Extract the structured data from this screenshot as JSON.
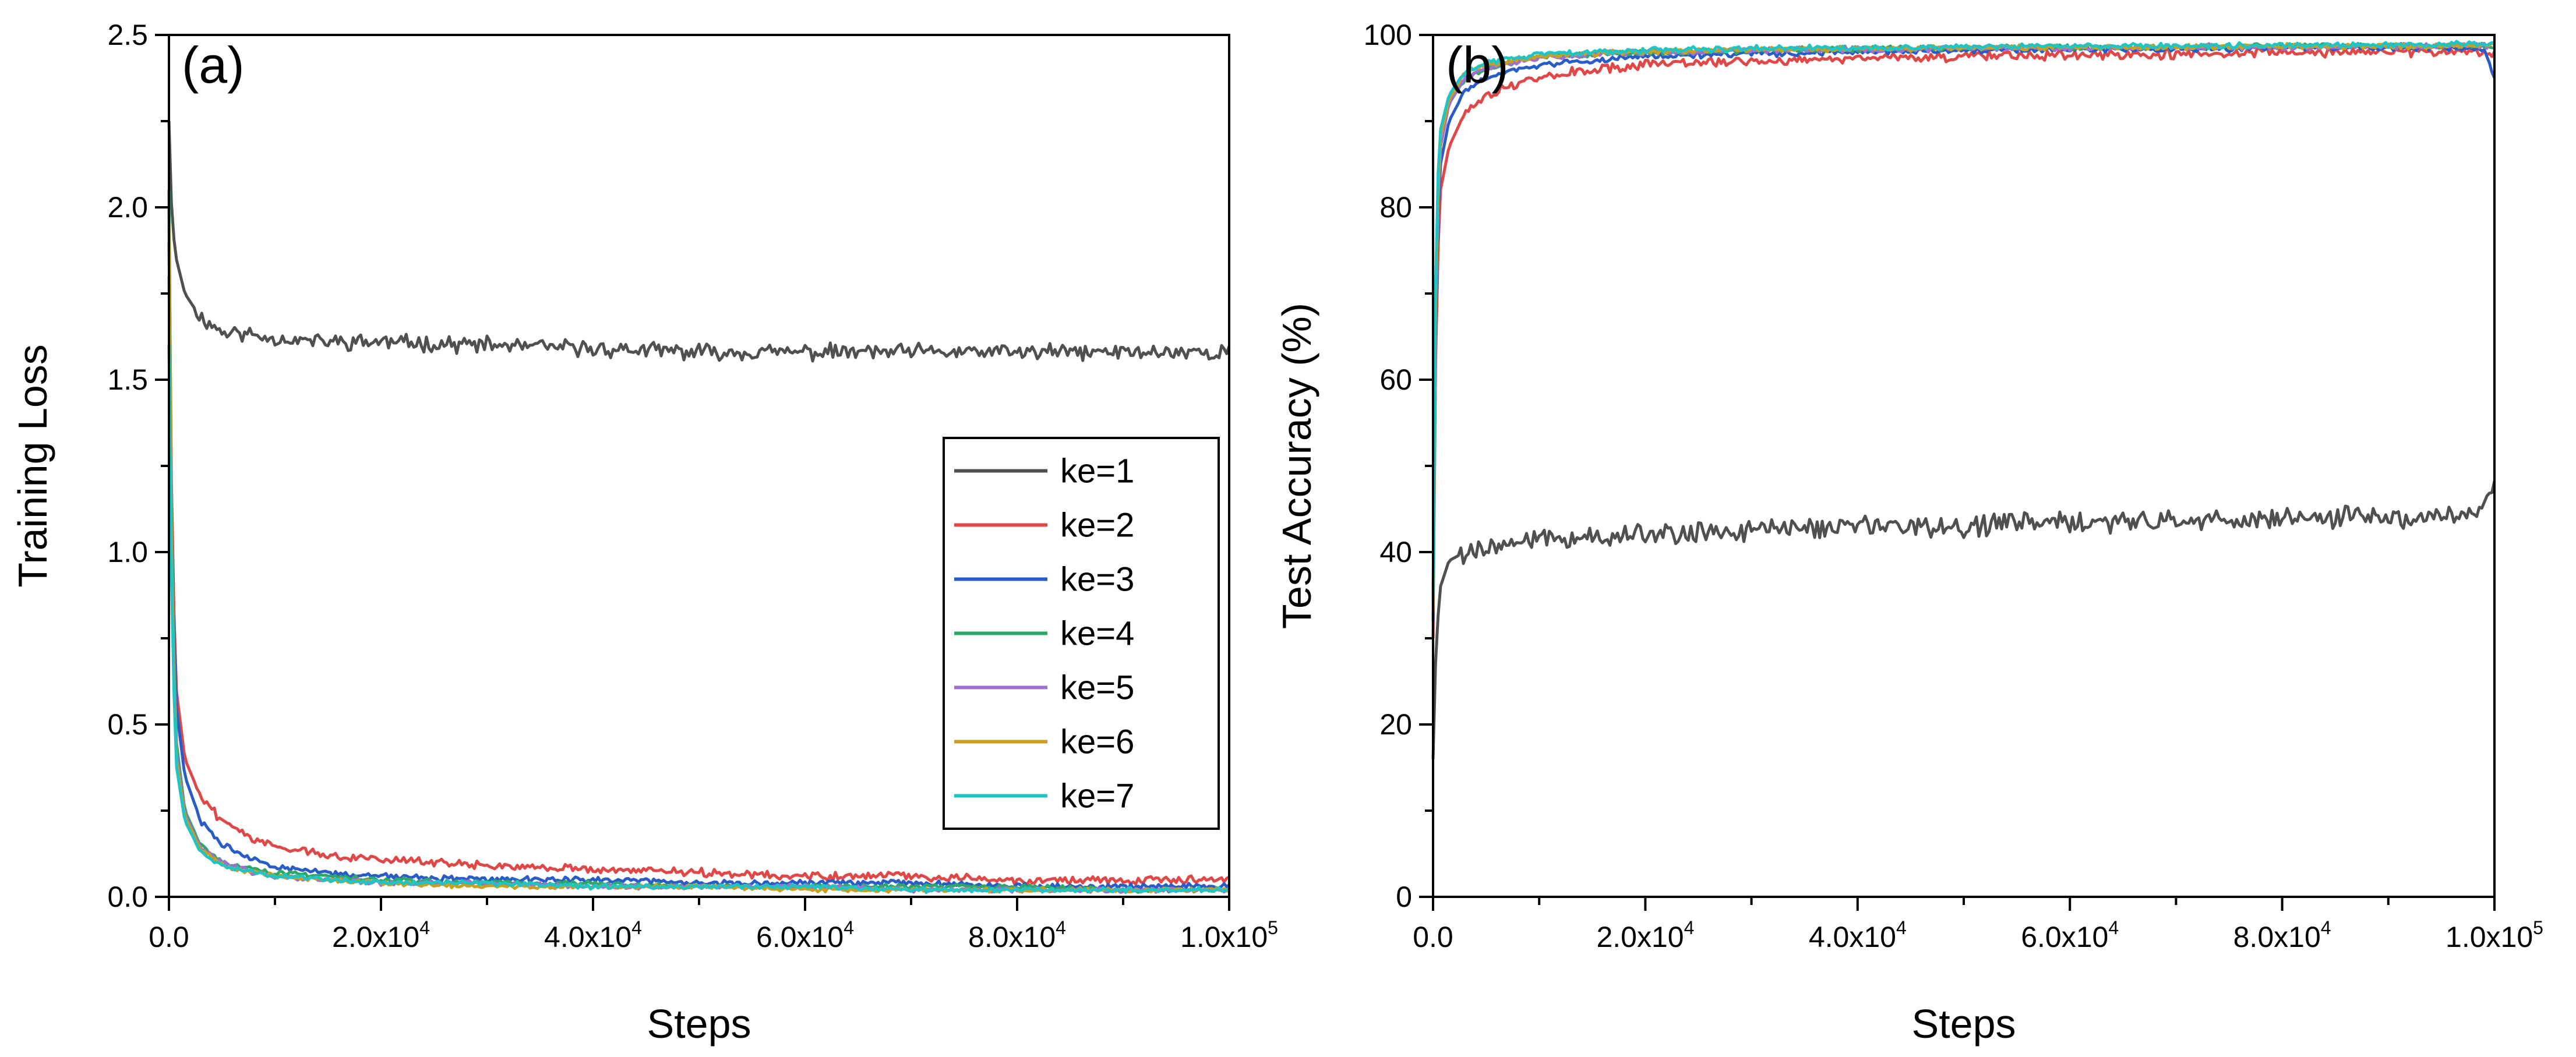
{
  "chart_data": [
    {
      "type": "line",
      "panel_label": "(a)",
      "xlabel": "Steps",
      "ylabel": "Training Loss",
      "xlim": [
        0,
        100000
      ],
      "ylim": [
        0,
        2.5
      ],
      "x_tick_labels": [
        {
          "value": 0,
          "base": "0.0",
          "exp": ""
        },
        {
          "value": 20000,
          "base": "2.0x10",
          "exp": "4"
        },
        {
          "value": 40000,
          "base": "4.0x10",
          "exp": "4"
        },
        {
          "value": 60000,
          "base": "6.0x10",
          "exp": "4"
        },
        {
          "value": 80000,
          "base": "8.0x10",
          "exp": "4"
        },
        {
          "value": 100000,
          "base": "1.0x10",
          "exp": "5"
        }
      ],
      "y_ticks": [
        {
          "value": 0,
          "label": "0.0"
        },
        {
          "value": 0.5,
          "label": "0.5"
        },
        {
          "value": 1.0,
          "label": "1.0"
        },
        {
          "value": 1.5,
          "label": "1.5"
        },
        {
          "value": 2.0,
          "label": "2.0"
        },
        {
          "value": 2.5,
          "label": "2.5"
        }
      ],
      "legend_location": "center-right",
      "series": [
        {
          "name": "ke=1",
          "color": "#505050",
          "x": [
            0,
            300,
            700,
            1500,
            3000,
            5000,
            8000,
            10000,
            15000,
            20000,
            30000,
            40000,
            50000,
            60000,
            70000,
            80000,
            90000,
            100000
          ],
          "y": [
            2.25,
            1.95,
            1.85,
            1.75,
            1.68,
            1.64,
            1.63,
            1.62,
            1.61,
            1.61,
            1.6,
            1.59,
            1.58,
            1.58,
            1.58,
            1.58,
            1.58,
            1.58
          ]
        },
        {
          "name": "ke=2",
          "color": "#e04848",
          "x": [
            0,
            300,
            700,
            1500,
            3000,
            5000,
            8000,
            10000,
            15000,
            20000,
            30000,
            40000,
            50000,
            60000,
            70000,
            80000,
            90000,
            100000
          ],
          "y": [
            2.0,
            1.0,
            0.6,
            0.4,
            0.29,
            0.22,
            0.17,
            0.15,
            0.12,
            0.11,
            0.09,
            0.08,
            0.07,
            0.06,
            0.06,
            0.05,
            0.05,
            0.05
          ]
        },
        {
          "name": "ke=3",
          "color": "#2a5cc8",
          "x": [
            0,
            300,
            700,
            1500,
            3000,
            5000,
            8000,
            10000,
            15000,
            20000,
            30000,
            40000,
            50000,
            60000,
            70000,
            80000,
            90000,
            100000
          ],
          "y": [
            1.9,
            0.95,
            0.55,
            0.35,
            0.22,
            0.15,
            0.11,
            0.09,
            0.07,
            0.06,
            0.05,
            0.05,
            0.04,
            0.04,
            0.04,
            0.03,
            0.03,
            0.03
          ]
        },
        {
          "name": "ke=4",
          "color": "#2ea86a",
          "x": [
            0,
            300,
            700,
            1500,
            3000,
            5000,
            8000,
            10000,
            15000,
            20000,
            30000,
            40000,
            50000,
            60000,
            70000,
            80000,
            90000,
            100000
          ],
          "y": [
            2.05,
            0.9,
            0.45,
            0.25,
            0.15,
            0.1,
            0.08,
            0.07,
            0.06,
            0.05,
            0.04,
            0.04,
            0.03,
            0.03,
            0.03,
            0.03,
            0.02,
            0.02
          ]
        },
        {
          "name": "ke=5",
          "color": "#a070d0",
          "x": [
            0,
            300,
            700,
            1500,
            3000,
            5000,
            8000,
            10000,
            15000,
            20000,
            30000,
            40000,
            50000,
            60000,
            70000,
            80000,
            90000,
            100000
          ],
          "y": [
            1.8,
            0.85,
            0.42,
            0.24,
            0.14,
            0.1,
            0.07,
            0.06,
            0.05,
            0.04,
            0.04,
            0.03,
            0.03,
            0.03,
            0.02,
            0.02,
            0.02,
            0.02
          ]
        },
        {
          "name": "ke=6",
          "color": "#c8a020",
          "x": [
            0,
            300,
            700,
            1500,
            3000,
            5000,
            8000,
            10000,
            15000,
            20000,
            30000,
            40000,
            50000,
            60000,
            70000,
            80000,
            90000,
            100000
          ],
          "y": [
            1.95,
            0.8,
            0.4,
            0.23,
            0.14,
            0.09,
            0.07,
            0.06,
            0.05,
            0.04,
            0.03,
            0.03,
            0.03,
            0.02,
            0.02,
            0.02,
            0.02,
            0.02
          ]
        },
        {
          "name": "ke=7",
          "color": "#20c4c4",
          "x": [
            0,
            300,
            700,
            1500,
            3000,
            5000,
            8000,
            10000,
            15000,
            20000,
            30000,
            40000,
            50000,
            60000,
            70000,
            80000,
            90000,
            100000
          ],
          "y": [
            1.6,
            0.75,
            0.38,
            0.22,
            0.13,
            0.09,
            0.07,
            0.06,
            0.05,
            0.04,
            0.04,
            0.03,
            0.03,
            0.03,
            0.02,
            0.02,
            0.02,
            0.02
          ]
        }
      ]
    },
    {
      "type": "line",
      "panel_label": "(b)",
      "xlabel": "Steps",
      "ylabel": "Test Accuracy  (%)",
      "xlim": [
        0,
        100000
      ],
      "ylim": [
        0,
        100
      ],
      "x_tick_labels": [
        {
          "value": 0,
          "base": "0.0",
          "exp": ""
        },
        {
          "value": 20000,
          "base": "2.0x10",
          "exp": "4"
        },
        {
          "value": 40000,
          "base": "4.0x10",
          "exp": "4"
        },
        {
          "value": 60000,
          "base": "6.0x10",
          "exp": "4"
        },
        {
          "value": 80000,
          "base": "8.0x10",
          "exp": "4"
        },
        {
          "value": 100000,
          "base": "1.0x10",
          "exp": "5"
        }
      ],
      "y_ticks": [
        {
          "value": 0,
          "label": "0"
        },
        {
          "value": 20,
          "label": "20"
        },
        {
          "value": 40,
          "label": "40"
        },
        {
          "value": 60,
          "label": "60"
        },
        {
          "value": 80,
          "label": "80"
        },
        {
          "value": 100,
          "label": "100"
        }
      ],
      "series": [
        {
          "name": "ke=1",
          "color": "#505050",
          "x": [
            0,
            300,
            700,
            1500,
            3000,
            5000,
            10000,
            20000,
            30000,
            40000,
            50000,
            60000,
            70000,
            80000,
            90000,
            98000,
            100000
          ],
          "y": [
            16,
            30,
            36,
            39,
            40,
            40.5,
            41.5,
            42,
            42.5,
            43,
            43,
            43.5,
            43.5,
            44,
            44,
            44.5,
            48
          ]
        },
        {
          "name": "ke=2",
          "color": "#e04848",
          "x": [
            0,
            300,
            700,
            1500,
            3000,
            5000,
            8000,
            10000,
            15000,
            20000,
            30000,
            40000,
            50000,
            60000,
            70000,
            80000,
            90000,
            100000
          ],
          "y": [
            30,
            70,
            82,
            87,
            91,
            93,
            94.5,
            95,
            96,
            96.5,
            97,
            97.3,
            97.5,
            97.7,
            97.8,
            98,
            98,
            98
          ]
        },
        {
          "name": "ke=3",
          "color": "#2a5cc8",
          "x": [
            0,
            300,
            700,
            1500,
            3000,
            5000,
            8000,
            10000,
            15000,
            20000,
            30000,
            40000,
            50000,
            60000,
            70000,
            80000,
            90000,
            99000,
            100000
          ],
          "y": [
            32,
            74,
            85,
            90,
            93.5,
            95,
            96,
            96.5,
            97,
            97.5,
            97.8,
            98,
            98.2,
            98.3,
            98.4,
            98.5,
            98.5,
            98.5,
            95
          ]
        },
        {
          "name": "ke=4",
          "color": "#2ea86a",
          "x": [
            0,
            300,
            700,
            1500,
            3000,
            5000,
            8000,
            10000,
            15000,
            20000,
            30000,
            40000,
            50000,
            60000,
            70000,
            80000,
            90000,
            100000
          ],
          "y": [
            34,
            78,
            88,
            92,
            95,
            96,
            97,
            97.4,
            97.8,
            98,
            98.2,
            98.4,
            98.5,
            98.5,
            98.6,
            98.7,
            98.7,
            98.8
          ]
        },
        {
          "name": "ke=5",
          "color": "#a070d0",
          "x": [
            0,
            300,
            700,
            1500,
            3000,
            5000,
            8000,
            10000,
            15000,
            20000,
            30000,
            40000,
            50000,
            60000,
            70000,
            80000,
            90000,
            100000
          ],
          "y": [
            33,
            76,
            87,
            92,
            95,
            96.2,
            97,
            97.4,
            97.8,
            98,
            98.2,
            98.3,
            98.4,
            98.5,
            98.6,
            98.6,
            98.7,
            98.7
          ]
        },
        {
          "name": "ke=6",
          "color": "#c8a020",
          "x": [
            0,
            300,
            700,
            1500,
            3000,
            5000,
            8000,
            10000,
            15000,
            20000,
            30000,
            40000,
            50000,
            60000,
            70000,
            80000,
            90000,
            100000
          ],
          "y": [
            33,
            77,
            88,
            92.5,
            95.5,
            96.5,
            97.2,
            97.5,
            97.9,
            98.1,
            98.3,
            98.4,
            98.5,
            98.6,
            98.6,
            98.7,
            98.7,
            98.8
          ]
        },
        {
          "name": "ke=7",
          "color": "#20c4c4",
          "x": [
            0,
            300,
            700,
            1500,
            3000,
            5000,
            8000,
            10000,
            15000,
            20000,
            30000,
            40000,
            50000,
            60000,
            70000,
            80000,
            90000,
            100000
          ],
          "y": [
            35,
            80,
            89,
            93,
            95.8,
            96.8,
            97.4,
            97.7,
            98,
            98.2,
            98.4,
            98.5,
            98.6,
            98.7,
            98.7,
            98.8,
            98.8,
            99
          ]
        }
      ]
    }
  ]
}
